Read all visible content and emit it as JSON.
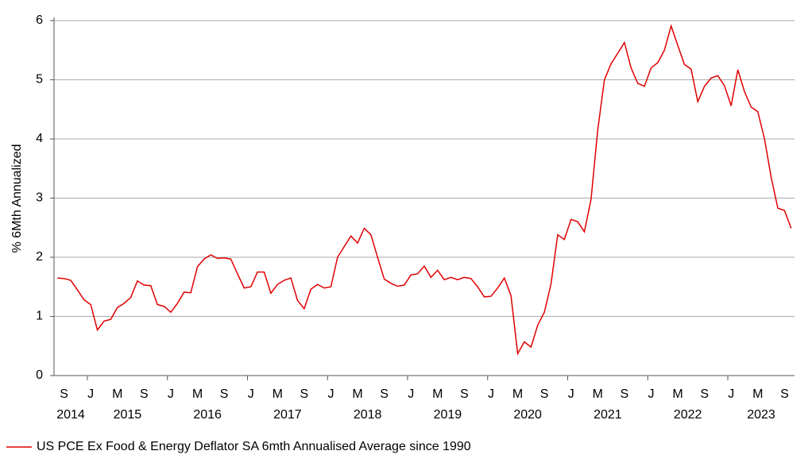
{
  "chart_data": {
    "type": "line",
    "y_label": "% 6Mth Annualized",
    "categories": [
      null,
      "S",
      null,
      null,
      null,
      "J",
      null,
      null,
      null,
      "M",
      null,
      null,
      null,
      "S",
      null,
      null,
      null,
      "J",
      null,
      null,
      null,
      "M",
      null,
      null,
      null,
      "S",
      null,
      null,
      null,
      "J",
      null,
      null,
      null,
      "M",
      null,
      null,
      null,
      "S",
      null,
      null,
      null,
      "J",
      null,
      null,
      null,
      "M",
      null,
      null,
      null,
      "S",
      null,
      null,
      null,
      "J",
      null,
      null,
      null,
      "M",
      null,
      null,
      null,
      "S",
      null,
      null,
      null,
      "J",
      null,
      null,
      null,
      "M",
      null,
      null,
      null,
      "S",
      null,
      null,
      null,
      "J",
      null,
      null,
      null,
      "M",
      null,
      null,
      null,
      "S",
      null,
      null,
      null,
      "J",
      null,
      null,
      null,
      "M",
      null,
      null,
      null,
      "S",
      null,
      null,
      null,
      "J",
      null,
      null,
      null,
      "M",
      null,
      null,
      null,
      "S",
      null
    ],
    "years": [
      "2014",
      "2015",
      "2016",
      "2017",
      "2018",
      "2019",
      "2020",
      "2021",
      "2022",
      "2023"
    ],
    "series": [
      {
        "name": "US PCE Ex Food & Energy Deflator SA 6mth Annualised Average since 1990",
        "color": "#e00000",
        "values": [
          1.65,
          1.64,
          1.61,
          1.45,
          1.28,
          1.2,
          0.77,
          0.92,
          0.95,
          1.15,
          1.22,
          1.32,
          1.6,
          1.53,
          1.52,
          1.2,
          1.17,
          1.07,
          1.22,
          1.41,
          1.4,
          1.84,
          1.97,
          2.04,
          1.98,
          1.99,
          1.97,
          1.72,
          1.48,
          1.5,
          1.75,
          1.75,
          1.39,
          1.54,
          1.61,
          1.65,
          1.27,
          1.13,
          1.46,
          1.54,
          1.48,
          1.5,
          2.0,
          2.18,
          2.36,
          2.24,
          2.49,
          2.38,
          2.0,
          1.63,
          1.56,
          1.51,
          1.53,
          1.7,
          1.72,
          1.85,
          1.66,
          1.78,
          1.62,
          1.66,
          1.62,
          1.66,
          1.64,
          1.5,
          1.33,
          1.34,
          1.48,
          1.65,
          1.35,
          0.37,
          0.57,
          0.48,
          0.85,
          1.07,
          1.55,
          2.38,
          2.3,
          2.64,
          2.6,
          2.43,
          2.98,
          4.15,
          5.0,
          5.27,
          5.45,
          5.63,
          5.2,
          4.94,
          4.89,
          5.2,
          5.29,
          5.5,
          5.91,
          5.58,
          5.26,
          5.18,
          4.63,
          4.89,
          5.03,
          5.07,
          4.9,
          4.56,
          5.17,
          4.8,
          4.54,
          4.46,
          4.0,
          3.35,
          2.83,
          2.79,
          2.49
        ]
      }
    ],
    "ylim": [
      0,
      6
    ],
    "yticks": [
      0,
      1,
      2,
      3,
      4,
      5,
      6
    ],
    "grid": true
  }
}
